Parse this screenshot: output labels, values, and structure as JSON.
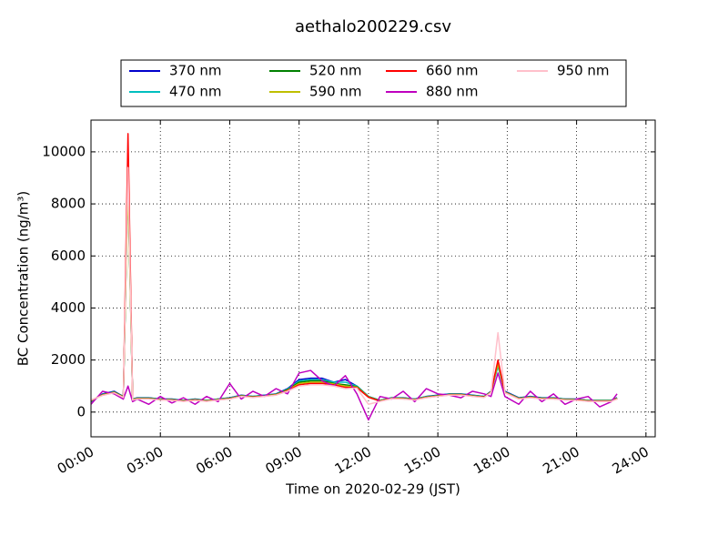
{
  "chart_data": {
    "type": "line",
    "title": "aethalo200229.csv",
    "x_label": "Time on 2020-02-29 (JST)",
    "y_label": "BC Concentration (ng/m³)",
    "x": [
      0,
      0.5,
      1,
      1.4,
      1.6,
      1.8,
      2,
      2.5,
      3,
      3.5,
      4,
      4.5,
      5,
      5.5,
      6,
      6.5,
      7,
      7.5,
      8,
      8.5,
      9,
      9.5,
      10,
      10.5,
      11,
      11.5,
      12,
      12.5,
      13,
      13.5,
      14,
      14.5,
      15,
      15.5,
      16,
      16.5,
      17,
      17.3,
      17.6,
      17.9,
      18.5,
      19,
      19.5,
      20,
      20.5,
      21,
      21.5,
      22,
      22.5,
      22.75
    ],
    "xlim": [
      0,
      24.4
    ],
    "ylim": [
      -950,
      11220
    ],
    "xticks": [
      {
        "value": 0,
        "label": "00:00"
      },
      {
        "value": 3,
        "label": "03:00"
      },
      {
        "value": 6,
        "label": "06:00"
      },
      {
        "value": 9,
        "label": "09:00"
      },
      {
        "value": 12,
        "label": "12:00"
      },
      {
        "value": 15,
        "label": "15:00"
      },
      {
        "value": 18,
        "label": "18:00"
      },
      {
        "value": 21,
        "label": "21:00"
      },
      {
        "value": 24,
        "label": "24:00"
      }
    ],
    "yticks": [
      0,
      2000,
      4000,
      6000,
      8000,
      10000
    ],
    "grid": true,
    "legend_position": "top",
    "series": [
      {
        "name": "370 nm",
        "color": "#0000cc",
        "values": [
          400,
          700,
          800,
          600,
          9000,
          500,
          550,
          550,
          500,
          500,
          450,
          500,
          450,
          500,
          550,
          650,
          600,
          650,
          700,
          900,
          1250,
          1300,
          1300,
          1150,
          1250,
          1000,
          600,
          450,
          550,
          550,
          500,
          600,
          650,
          700,
          700,
          650,
          600,
          800,
          1800,
          800,
          550,
          600,
          550,
          550,
          500,
          500,
          450,
          450,
          450,
          550
        ]
      },
      {
        "name": "470 nm",
        "color": "#00bfbf",
        "values": [
          420,
          680,
          780,
          600,
          8900,
          500,
          540,
          540,
          500,
          490,
          450,
          490,
          450,
          500,
          540,
          640,
          600,
          640,
          690,
          880,
          1200,
          1250,
          1250,
          1150,
          1150,
          1000,
          600,
          450,
          550,
          540,
          500,
          590,
          640,
          690,
          690,
          640,
          600,
          790,
          1750,
          780,
          540,
          590,
          540,
          540,
          500,
          490,
          450,
          450,
          450,
          540
        ]
      },
      {
        "name": "520 nm",
        "color": "#008000",
        "values": [
          430,
          670,
          770,
          590,
          9200,
          490,
          530,
          530,
          490,
          480,
          440,
          480,
          440,
          490,
          530,
          630,
          590,
          630,
          680,
          860,
          1150,
          1200,
          1200,
          1100,
          1050,
          980,
          590,
          440,
          540,
          530,
          490,
          580,
          630,
          680,
          680,
          630,
          590,
          780,
          1900,
          770,
          530,
          580,
          530,
          530,
          490,
          480,
          440,
          440,
          440,
          530
        ]
      },
      {
        "name": "590 nm",
        "color": "#bfbf00",
        "values": [
          440,
          660,
          760,
          580,
          8800,
          480,
          520,
          520,
          480,
          470,
          430,
          470,
          430,
          480,
          520,
          620,
          580,
          620,
          670,
          840,
          1100,
          1150,
          1150,
          1080,
          1000,
          960,
          580,
          430,
          530,
          520,
          480,
          570,
          620,
          670,
          670,
          620,
          580,
          770,
          1850,
          760,
          520,
          570,
          520,
          520,
          480,
          470,
          430,
          430,
          430,
          520
        ]
      },
      {
        "name": "660 nm",
        "color": "#ff0000",
        "values": [
          450,
          650,
          750,
          570,
          10700,
          470,
          510,
          510,
          470,
          460,
          420,
          460,
          420,
          470,
          510,
          610,
          570,
          610,
          660,
          820,
          1050,
          1100,
          1100,
          1050,
          950,
          940,
          570,
          420,
          520,
          510,
          470,
          560,
          610,
          660,
          660,
          610,
          570,
          760,
          2000,
          750,
          510,
          560,
          510,
          510,
          470,
          460,
          420,
          420,
          420,
          510
        ]
      },
      {
        "name": "880 nm",
        "color": "#bf00bf",
        "values": [
          300,
          800,
          700,
          500,
          1000,
          400,
          500,
          300,
          600,
          350,
          550,
          300,
          600,
          400,
          1100,
          500,
          800,
          600,
          900,
          700,
          1500,
          1600,
          1200,
          1000,
          1400,
          700,
          -300,
          600,
          500,
          800,
          400,
          900,
          700,
          650,
          550,
          800,
          700,
          600,
          1500,
          600,
          300,
          800,
          400,
          700,
          300,
          500,
          600,
          200,
          400,
          700
        ]
      },
      {
        "name": "950 nm",
        "color": "#ffc0cb",
        "values": [
          460,
          640,
          740,
          560,
          9400,
          460,
          500,
          500,
          460,
          450,
          410,
          450,
          410,
          460,
          500,
          600,
          560,
          600,
          650,
          800,
          1000,
          1050,
          1050,
          1000,
          900,
          920,
          300,
          410,
          510,
          500,
          460,
          550,
          600,
          650,
          650,
          600,
          560,
          750,
          3050,
          740,
          500,
          550,
          500,
          500,
          460,
          450,
          410,
          410,
          410,
          500
        ]
      }
    ]
  }
}
